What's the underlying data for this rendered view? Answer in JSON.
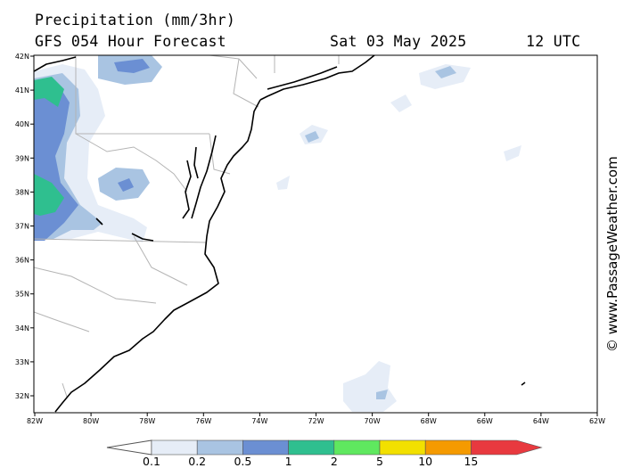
{
  "header": {
    "title": "Precipitation (mm/3hr)",
    "model_line": "GFS 054 Hour Forecast",
    "date": "Sat 03 May 2025",
    "time": "12 UTC"
  },
  "credit": "© www.PassageWeather.com",
  "lat_labels": [
    "42N",
    "41N",
    "40N",
    "39N",
    "38N",
    "37N",
    "36N",
    "35N",
    "34N",
    "33N",
    "32N"
  ],
  "lon_labels": [
    "82W",
    "80W",
    "78W",
    "76W",
    "74W",
    "72W",
    "70W",
    "68W",
    "66W",
    "64W",
    "62W"
  ],
  "colorbar": {
    "colors": [
      "#e6edf7",
      "#a9c4e2",
      "#6b8fd3",
      "#2fbf8f",
      "#5fe85f",
      "#f2e000",
      "#f59a00",
      "#e8393f"
    ],
    "labels": [
      "0.1",
      "0.2",
      "0.5",
      "1",
      "2",
      "5",
      "10",
      "15"
    ]
  }
}
